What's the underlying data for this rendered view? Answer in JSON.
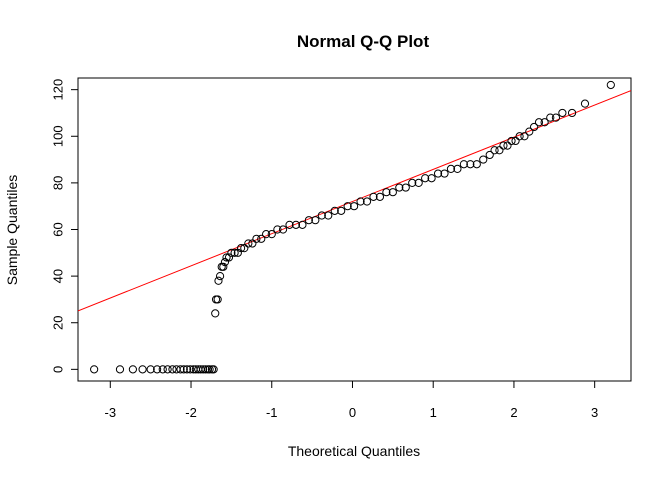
{
  "chart_data": {
    "type": "scatter",
    "title": "Normal Q-Q Plot",
    "xlabel": "Theoretical Quantiles",
    "ylabel": "Sample Quantiles",
    "xlim": [
      -3.4,
      3.45
    ],
    "ylim": [
      -5,
      125
    ],
    "x_ticks": [
      -3,
      -2,
      -1,
      0,
      1,
      2,
      3
    ],
    "y_ticks": [
      0,
      20,
      40,
      60,
      80,
      100,
      120
    ],
    "x_tick_labels": [
      "-3",
      "-2",
      "-1",
      "0",
      "1",
      "2",
      "3"
    ],
    "y_tick_labels": [
      "0",
      "20",
      "40",
      "60",
      "80",
      "100",
      "120"
    ],
    "grid": false,
    "point_style": "open-circle",
    "point_color": "#000000",
    "reference_line": {
      "intercept": 72,
      "slope": 13.8,
      "color": "#ff0000"
    },
    "points": [
      {
        "x": -3.2,
        "y": 0
      },
      {
        "x": -2.88,
        "y": 0
      },
      {
        "x": -2.72,
        "y": 0
      },
      {
        "x": -2.6,
        "y": 0
      },
      {
        "x": -2.5,
        "y": 0
      },
      {
        "x": -2.42,
        "y": 0
      },
      {
        "x": -2.35,
        "y": 0
      },
      {
        "x": -2.29,
        "y": 0
      },
      {
        "x": -2.23,
        "y": 0
      },
      {
        "x": -2.18,
        "y": 0
      },
      {
        "x": -2.13,
        "y": 0
      },
      {
        "x": -2.09,
        "y": 0
      },
      {
        "x": -2.05,
        "y": 0
      },
      {
        "x": -2.01,
        "y": 0
      },
      {
        "x": -1.97,
        "y": 0
      },
      {
        "x": -1.94,
        "y": 0
      },
      {
        "x": -1.91,
        "y": 0
      },
      {
        "x": -1.88,
        "y": 0
      },
      {
        "x": -1.85,
        "y": 0
      },
      {
        "x": -1.82,
        "y": 0
      },
      {
        "x": -1.79,
        "y": 0
      },
      {
        "x": -1.77,
        "y": 0
      },
      {
        "x": -1.74,
        "y": 0
      },
      {
        "x": -1.72,
        "y": 0
      },
      {
        "x": -1.7,
        "y": 24
      },
      {
        "x": -1.69,
        "y": 30
      },
      {
        "x": -1.67,
        "y": 30
      },
      {
        "x": -1.66,
        "y": 38
      },
      {
        "x": -1.64,
        "y": 40
      },
      {
        "x": -1.62,
        "y": 44
      },
      {
        "x": -1.6,
        "y": 44
      },
      {
        "x": -1.58,
        "y": 46
      },
      {
        "x": -1.56,
        "y": 48
      },
      {
        "x": -1.53,
        "y": 48
      },
      {
        "x": -1.5,
        "y": 50
      },
      {
        "x": -1.46,
        "y": 50
      },
      {
        "x": -1.42,
        "y": 50
      },
      {
        "x": -1.38,
        "y": 52
      },
      {
        "x": -1.34,
        "y": 52
      },
      {
        "x": -1.29,
        "y": 54
      },
      {
        "x": -1.24,
        "y": 54
      },
      {
        "x": -1.19,
        "y": 56
      },
      {
        "x": -1.13,
        "y": 56
      },
      {
        "x": -1.07,
        "y": 58
      },
      {
        "x": -1.0,
        "y": 58
      },
      {
        "x": -0.93,
        "y": 60
      },
      {
        "x": -0.86,
        "y": 60
      },
      {
        "x": -0.78,
        "y": 62
      },
      {
        "x": -0.7,
        "y": 62
      },
      {
        "x": -0.62,
        "y": 62
      },
      {
        "x": -0.54,
        "y": 64
      },
      {
        "x": -0.46,
        "y": 64
      },
      {
        "x": -0.38,
        "y": 66
      },
      {
        "x": -0.3,
        "y": 66
      },
      {
        "x": -0.22,
        "y": 68
      },
      {
        "x": -0.14,
        "y": 68
      },
      {
        "x": -0.06,
        "y": 70
      },
      {
        "x": 0.02,
        "y": 70
      },
      {
        "x": 0.1,
        "y": 72
      },
      {
        "x": 0.18,
        "y": 72
      },
      {
        "x": 0.26,
        "y": 74
      },
      {
        "x": 0.34,
        "y": 74
      },
      {
        "x": 0.42,
        "y": 76
      },
      {
        "x": 0.5,
        "y": 76
      },
      {
        "x": 0.58,
        "y": 78
      },
      {
        "x": 0.66,
        "y": 78
      },
      {
        "x": 0.74,
        "y": 80
      },
      {
        "x": 0.82,
        "y": 80
      },
      {
        "x": 0.9,
        "y": 82
      },
      {
        "x": 0.98,
        "y": 82
      },
      {
        "x": 1.06,
        "y": 84
      },
      {
        "x": 1.14,
        "y": 84
      },
      {
        "x": 1.22,
        "y": 86
      },
      {
        "x": 1.3,
        "y": 86
      },
      {
        "x": 1.38,
        "y": 88
      },
      {
        "x": 1.46,
        "y": 88
      },
      {
        "x": 1.54,
        "y": 88
      },
      {
        "x": 1.62,
        "y": 90
      },
      {
        "x": 1.7,
        "y": 92
      },
      {
        "x": 1.76,
        "y": 94
      },
      {
        "x": 1.82,
        "y": 94
      },
      {
        "x": 1.87,
        "y": 96
      },
      {
        "x": 1.92,
        "y": 96
      },
      {
        "x": 1.97,
        "y": 98
      },
      {
        "x": 2.02,
        "y": 98
      },
      {
        "x": 2.07,
        "y": 100
      },
      {
        "x": 2.13,
        "y": 100
      },
      {
        "x": 2.19,
        "y": 102
      },
      {
        "x": 2.25,
        "y": 104
      },
      {
        "x": 2.31,
        "y": 106
      },
      {
        "x": 2.38,
        "y": 106
      },
      {
        "x": 2.45,
        "y": 108
      },
      {
        "x": 2.52,
        "y": 108
      },
      {
        "x": 2.6,
        "y": 110
      },
      {
        "x": 2.72,
        "y": 110
      },
      {
        "x": 2.88,
        "y": 114
      },
      {
        "x": 3.2,
        "y": 122
      }
    ]
  }
}
